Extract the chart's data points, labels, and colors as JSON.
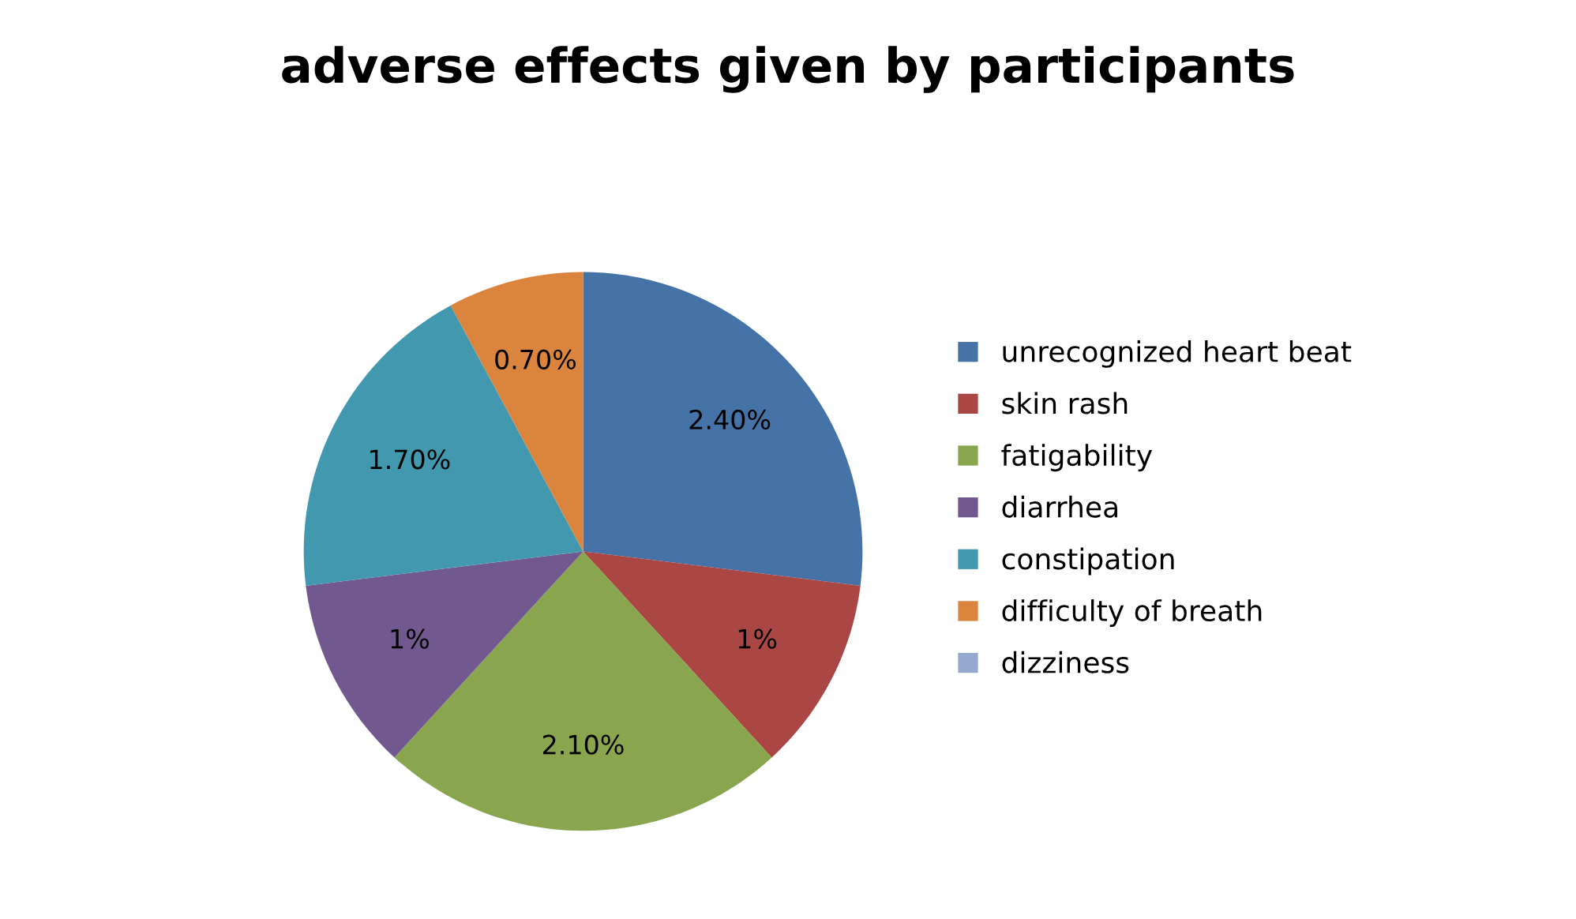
{
  "chart_data": {
    "type": "pie",
    "title": "adverse effects given by participants",
    "categories": [
      "unrecognized heart beat",
      "skin rash",
      "fatigability",
      "diarrhea",
      "constipation",
      "difficulty of breath",
      "dizziness"
    ],
    "values": [
      2.4,
      1,
      2.1,
      1,
      1.7,
      0.7,
      0
    ],
    "value_labels": [
      "2.40%",
      "1%",
      "2.10%",
      "1%",
      "1.70%",
      "0.70%",
      null
    ],
    "colors": [
      "#4572a7",
      "#aa4643",
      "#89a54e",
      "#71588f",
      "#4198af",
      "#db843d",
      "#93a9cf"
    ],
    "legend": "right"
  }
}
